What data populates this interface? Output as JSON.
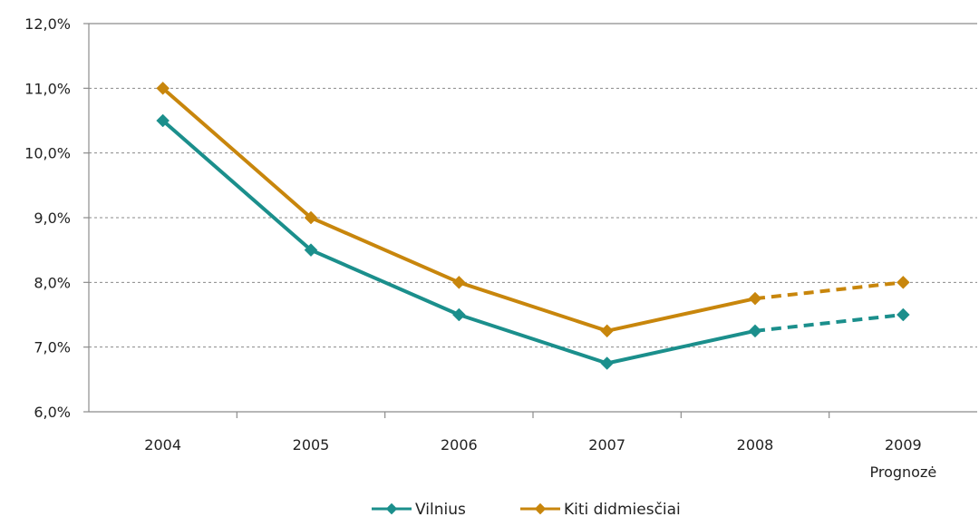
{
  "chart_data": {
    "type": "line",
    "categories": [
      "2004",
      "2005",
      "2006",
      "2007",
      "2008",
      "2009"
    ],
    "category_sublabels": [
      "",
      "",
      "",
      "",
      "",
      "Prognozė"
    ],
    "y_tick_labels": [
      "6,0%",
      "7,0%",
      "8,0%",
      "9,0%",
      "10,0%",
      "11,0%",
      "12,0%"
    ],
    "ylim": [
      6.0,
      12.0
    ],
    "y_unit": "%",
    "grid": true,
    "legend_position": "bottom",
    "forecast_from_category": "2008",
    "title": "",
    "xlabel": "",
    "ylabel": "",
    "series": [
      {
        "name": "Vilnius",
        "color": "#1b8f8c",
        "marker": "diamond",
        "values": [
          10.5,
          8.5,
          7.5,
          6.75,
          7.25,
          7.5
        ]
      },
      {
        "name": "Kiti didmiesčiai",
        "color": "#c8860c",
        "marker": "diamond",
        "values": [
          11.0,
          9.0,
          8.0,
          7.25,
          7.75,
          8.0
        ]
      }
    ]
  }
}
